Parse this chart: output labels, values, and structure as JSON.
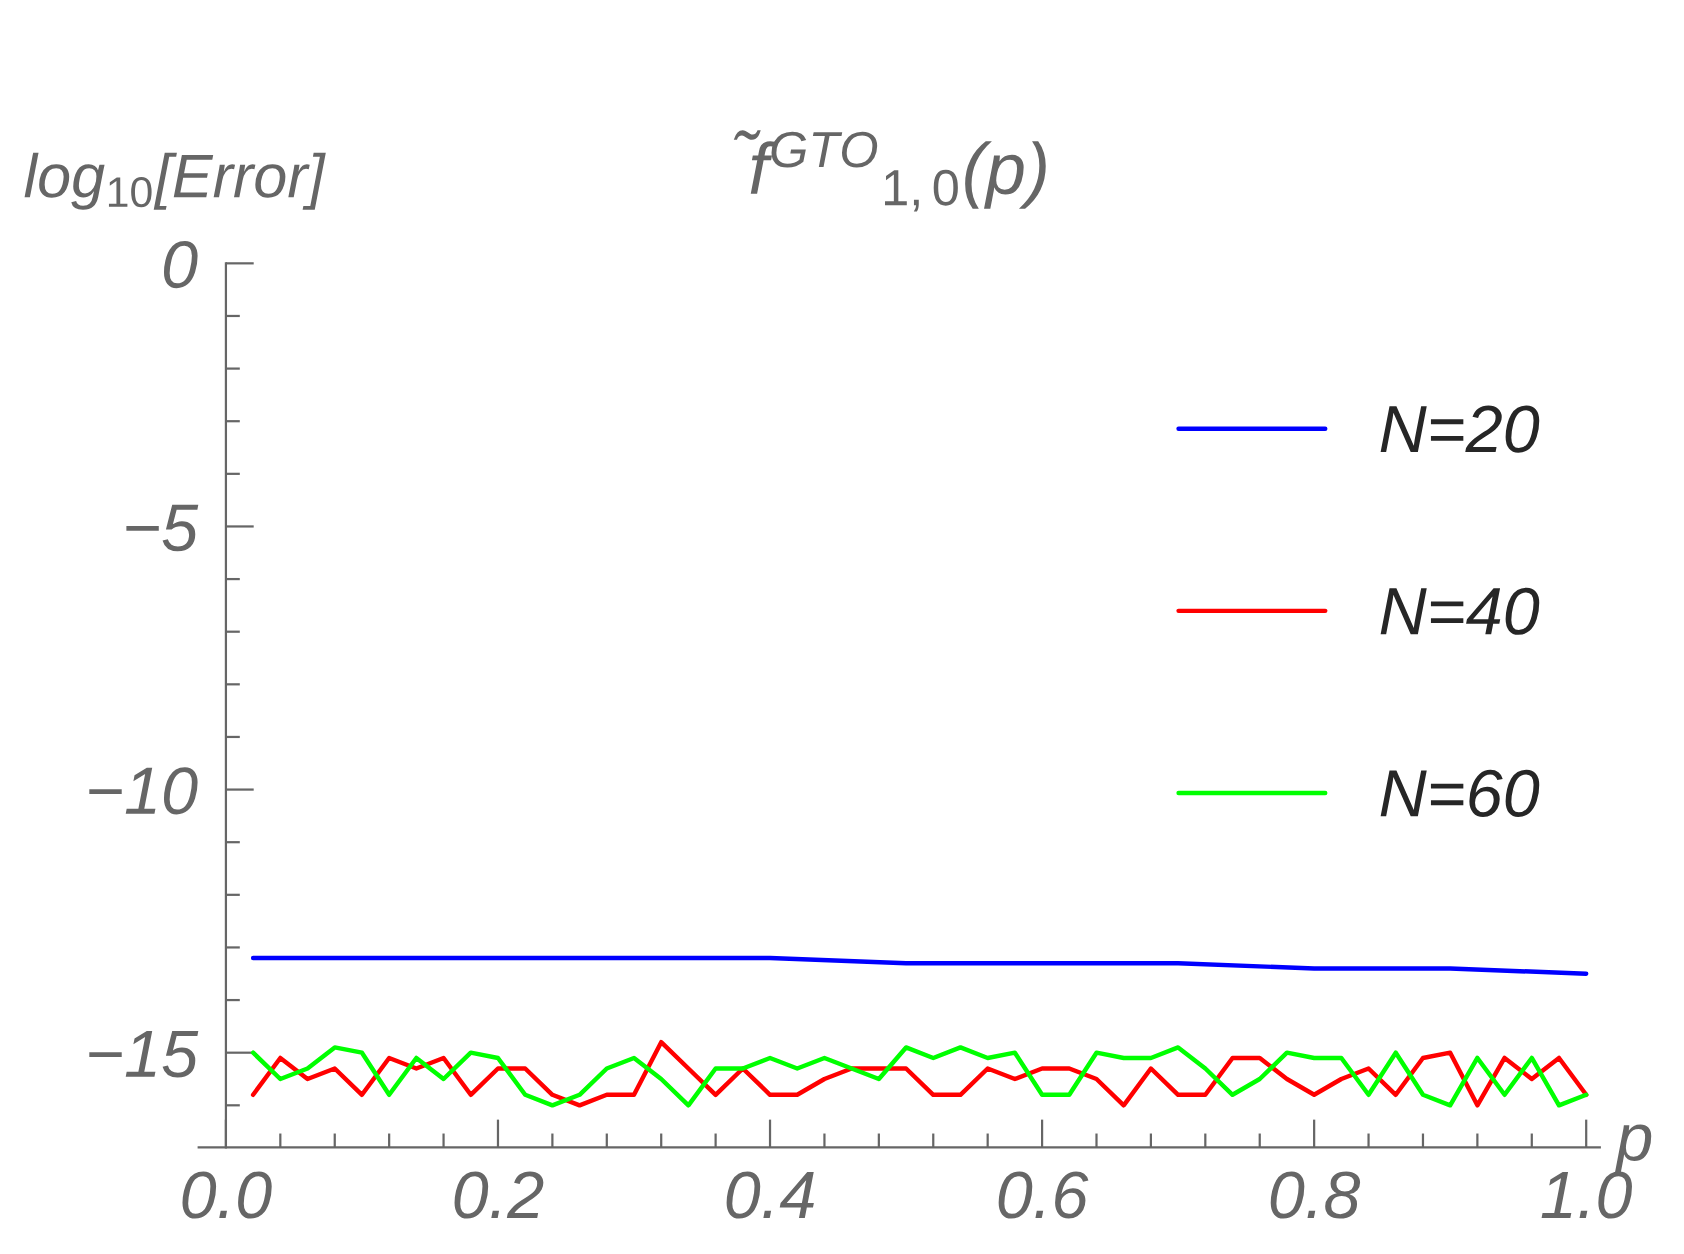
{
  "chart_data": {
    "type": "line",
    "title": "f̃$^{GTO}$$_{1,0}$(p)",
    "xlabel": "p",
    "ylabel": "log$_{10}$[Error]",
    "x": [
      0.02,
      0.04,
      0.06,
      0.08,
      0.1,
      0.12,
      0.14,
      0.16,
      0.18,
      0.2,
      0.22,
      0.24,
      0.26,
      0.28,
      0.3,
      0.32,
      0.34,
      0.36,
      0.38,
      0.4,
      0.42,
      0.44,
      0.46,
      0.48,
      0.5,
      0.52,
      0.54,
      0.56,
      0.58,
      0.6,
      0.62,
      0.64,
      0.66,
      0.68,
      0.7,
      0.72,
      0.74,
      0.76,
      0.78,
      0.8,
      0.82,
      0.84,
      0.86,
      0.88,
      0.9,
      0.92,
      0.94,
      0.96,
      0.98,
      1.0
    ],
    "series": [
      {
        "name": "N=20",
        "color": "#0000ff",
        "x": [
          0.02,
          0.1,
          0.2,
          0.3,
          0.4,
          0.5,
          0.6,
          0.7,
          0.8,
          0.9,
          1.0
        ],
        "values": [
          -13.2,
          -13.2,
          -13.2,
          -13.2,
          -13.2,
          -13.3,
          -13.3,
          -13.3,
          -13.4,
          -13.4,
          -13.5
        ]
      },
      {
        "name": "N=40",
        "color": "#ff0000",
        "values": [
          -15.8,
          -15.1,
          -15.5,
          -15.3,
          -15.8,
          -15.1,
          -15.3,
          -15.1,
          -15.8,
          -15.3,
          -15.3,
          -15.8,
          -16.0,
          -15.8,
          -15.8,
          -14.8,
          -15.3,
          -15.8,
          -15.3,
          -15.8,
          -15.8,
          -15.5,
          -15.3,
          -15.3,
          -15.3,
          -15.8,
          -15.8,
          -15.3,
          -15.5,
          -15.3,
          -15.3,
          -15.5,
          -16.0,
          -15.3,
          -15.8,
          -15.8,
          -15.1,
          -15.1,
          -15.5,
          -15.8,
          -15.5,
          -15.3,
          -15.8,
          -15.1,
          -15.0,
          -16.0,
          -15.1,
          -15.5,
          -15.1,
          -15.8
        ]
      },
      {
        "name": "N=60",
        "color": "#00ff00",
        "values": [
          -15.0,
          -15.5,
          -15.3,
          -14.9,
          -15.0,
          -15.8,
          -15.1,
          -15.5,
          -15.0,
          -15.1,
          -15.8,
          -16.0,
          -15.8,
          -15.3,
          -15.1,
          -15.5,
          -16.0,
          -15.3,
          -15.3,
          -15.1,
          -15.3,
          -15.1,
          -15.3,
          -15.5,
          -14.9,
          -15.1,
          -14.9,
          -15.1,
          -15.0,
          -15.8,
          -15.8,
          -15.0,
          -15.1,
          -15.1,
          -14.9,
          -15.3,
          -15.8,
          -15.5,
          -15.0,
          -15.1,
          -15.1,
          -15.8,
          -15.0,
          -15.8,
          -16.0,
          -15.1,
          -15.8,
          -15.1,
          -16.0,
          -15.8
        ]
      }
    ],
    "xlim": [
      -0.02,
      1.01
    ],
    "ylim": [
      -16.8,
      0
    ],
    "xticks": [
      {
        "value": 0,
        "label": "0.0"
      },
      {
        "value": 0.04,
        "label": null
      },
      {
        "value": 0.08,
        "label": null
      },
      {
        "value": 0.12,
        "label": null
      },
      {
        "value": 0.16,
        "label": null
      },
      {
        "value": 0.2,
        "label": "0.2"
      },
      {
        "value": 0.24,
        "label": null
      },
      {
        "value": 0.28,
        "label": null
      },
      {
        "value": 0.32,
        "label": null
      },
      {
        "value": 0.36,
        "label": null
      },
      {
        "value": 0.4,
        "label": "0.4"
      },
      {
        "value": 0.44,
        "label": null
      },
      {
        "value": 0.48,
        "label": null
      },
      {
        "value": 0.52,
        "label": null
      },
      {
        "value": 0.56,
        "label": null
      },
      {
        "value": 0.6,
        "label": "0.6"
      },
      {
        "value": 0.64,
        "label": null
      },
      {
        "value": 0.68,
        "label": null
      },
      {
        "value": 0.72,
        "label": null
      },
      {
        "value": 0.76,
        "label": null
      },
      {
        "value": 0.8,
        "label": "0.8"
      },
      {
        "value": 0.84,
        "label": null
      },
      {
        "value": 0.88,
        "label": null
      },
      {
        "value": 0.92,
        "label": null
      },
      {
        "value": 0.96,
        "label": null
      },
      {
        "value": 1.0,
        "label": "1.0"
      }
    ],
    "yticks": [
      {
        "value": 0,
        "label": "0"
      },
      {
        "value": -1,
        "label": null
      },
      {
        "value": -2,
        "label": null
      },
      {
        "value": -3,
        "label": null
      },
      {
        "value": -4,
        "label": null
      },
      {
        "value": -5,
        "label": "−5"
      },
      {
        "value": -6,
        "label": null
      },
      {
        "value": -7,
        "label": null
      },
      {
        "value": -8,
        "label": null
      },
      {
        "value": -9,
        "label": null
      },
      {
        "value": -10,
        "label": "−10"
      },
      {
        "value": -11,
        "label": null
      },
      {
        "value": -12,
        "label": null
      },
      {
        "value": -13,
        "label": null
      },
      {
        "value": -14,
        "label": null
      },
      {
        "value": -15,
        "label": "−15"
      },
      {
        "value": -16,
        "label": null
      }
    ],
    "grid": false,
    "legend": "right",
    "marker": "none",
    "line_style": "solid"
  }
}
